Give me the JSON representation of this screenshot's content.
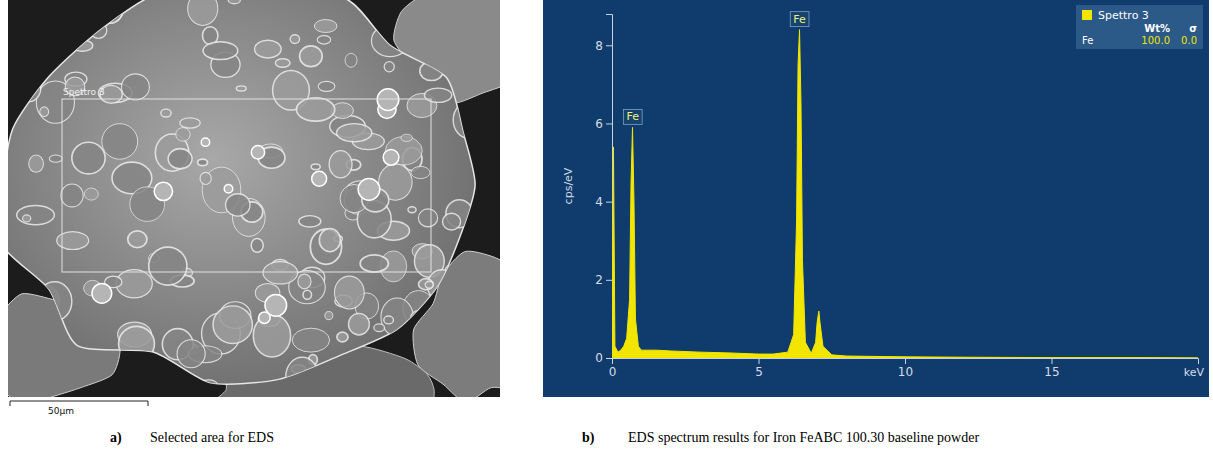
{
  "chart_data": {
    "type": "area",
    "x_label": "keV",
    "y_label": "cps/eV",
    "x": [
      0,
      0.05,
      0.1,
      0.2,
      0.3,
      0.4,
      0.5,
      0.6,
      0.65,
      0.7,
      0.75,
      0.8,
      0.9,
      1.0,
      1.5,
      2,
      3,
      4,
      5,
      5.5,
      6,
      6.2,
      6.3,
      6.35,
      6.4,
      6.45,
      6.5,
      6.6,
      6.8,
      6.95,
      7.0,
      7.06,
      7.1,
      7.2,
      7.5,
      8,
      10,
      12,
      15,
      18,
      20
    ],
    "series": [
      {
        "name": "Spettro 3",
        "color": "#f2e600",
        "values": [
          0,
          5.4,
          0.3,
          0.15,
          0.2,
          0.3,
          0.5,
          1.5,
          4.5,
          5.9,
          4.0,
          1.0,
          0.3,
          0.2,
          0.2,
          0.18,
          0.15,
          0.13,
          0.1,
          0.1,
          0.15,
          0.6,
          3.5,
          7.5,
          8.4,
          6.5,
          2.5,
          0.4,
          0.12,
          0.4,
          0.9,
          1.2,
          0.9,
          0.3,
          0.08,
          0.05,
          0.03,
          0.02,
          0.01,
          0.01,
          0
        ]
      }
    ],
    "xlim": [
      0,
      20
    ],
    "xticks": [
      0,
      5,
      10,
      15
    ],
    "ylim": [
      0,
      8.8
    ],
    "yticks": [
      0,
      2,
      4,
      6,
      8
    ],
    "grid": false,
    "legend": "top-right",
    "legend_table": {
      "columns": [
        "Wt%",
        "σ"
      ],
      "rows": [
        [
          "Fe",
          "100.0",
          "0.0"
        ]
      ]
    },
    "annotations": [
      {
        "text": "Fe",
        "x": 0.705,
        "y": 5.9
      },
      {
        "text": "Fe",
        "x": 6.4,
        "y": 8.4
      }
    ]
  },
  "figure": {
    "panels": [
      {
        "letter": "a)",
        "caption": "Selected area for EDS",
        "selection_label": "Spettro 3",
        "scale_bar": "50µm"
      },
      {
        "letter": "b)",
        "caption": "EDS spectrum results for Iron FeABC 100.30 baseline powder"
      }
    ]
  }
}
